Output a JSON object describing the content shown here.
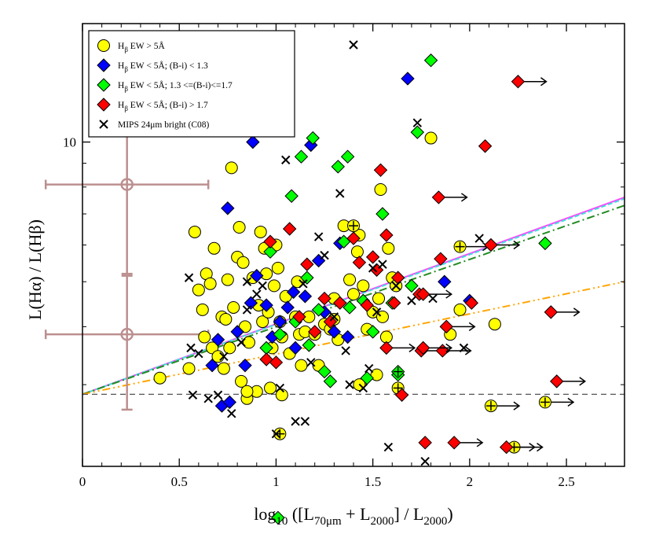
{
  "chart_data": {
    "type": "scatter",
    "xlabel": "log10 ([L70μm + L2000] / L2000)",
    "ylabel": "L(Hα) / L(Hβ)",
    "xlim": [
      0,
      2.8
    ],
    "ylim_log": [
      2,
      18
    ],
    "x_ticks": [
      "0",
      "0.5",
      "1",
      "1.5",
      "2",
      "2.5"
    ],
    "y_tick_label": "10",
    "legend": [
      {
        "key": "yellow",
        "text": "Hβ EW > 5Å",
        "marker": "circle",
        "color": "#ffff00"
      },
      {
        "key": "blue",
        "text": "Hβ EW < 5Å; (B-i) < 1.3",
        "marker": "diamond",
        "color": "#0000ff"
      },
      {
        "key": "green",
        "text": "Hβ EW < 5Å; 1.3 <=(B-i)<=1.7",
        "marker": "diamond",
        "color": "#00ff00"
      },
      {
        "key": "red",
        "text": "Hβ EW < 5Å; (B-i) > 1.7",
        "marker": "diamond",
        "color": "#ff0000"
      },
      {
        "key": "cross",
        "text": "MIPS 24μm bright  (C08)",
        "marker": "x",
        "color": "#000000"
      }
    ],
    "reference_line_y": 2.86,
    "fit_lines": [
      {
        "name": "magenta-fit",
        "color": "#ff44ff",
        "dash": "",
        "x": [
          0,
          2.8
        ],
        "y": [
          2.86,
          7.6
        ]
      },
      {
        "name": "cyan-fit",
        "color": "#44dddd",
        "dash": "6,3",
        "x": [
          0,
          2.8
        ],
        "y": [
          2.86,
          7.55
        ]
      },
      {
        "name": "green-fit",
        "color": "#228b22",
        "dash": "10,4,2,4",
        "x": [
          0,
          2.8
        ],
        "y": [
          2.86,
          7.3
        ]
      },
      {
        "name": "orange-fit",
        "color": "#ffa500",
        "dash": "10,4,2,4,2,4",
        "x": [
          0,
          2.8
        ],
        "y": [
          2.86,
          5.0
        ]
      }
    ],
    "error_bars": [
      {
        "x": 0.23,
        "y": 8.1,
        "xerr": [
          0.42,
          0.42
        ],
        "yerr_lo": 5.2,
        "yerr_hi": 10.6
      },
      {
        "x": 0.23,
        "y": 3.85,
        "xerr": [
          0.42,
          0.42
        ],
        "yerr_lo": 2.65,
        "yerr_hi": 5.15
      }
    ],
    "series": [
      {
        "name": "yellow",
        "points": [
          [
            0.4,
            3.1
          ],
          [
            0.55,
            3.25
          ],
          [
            0.58,
            6.4
          ],
          [
            0.6,
            4.8
          ],
          [
            0.62,
            4.35
          ],
          [
            0.63,
            3.8
          ],
          [
            0.64,
            5.2
          ],
          [
            0.66,
            4.95
          ],
          [
            0.67,
            3.6
          ],
          [
            0.68,
            5.9
          ],
          [
            0.7,
            3.45
          ],
          [
            0.72,
            4.2
          ],
          [
            0.73,
            3.25
          ],
          [
            0.74,
            4.15
          ],
          [
            0.75,
            5.05
          ],
          [
            0.76,
            3.6
          ],
          [
            0.77,
            8.8
          ],
          [
            0.78,
            4.4
          ],
          [
            0.8,
            5.65
          ],
          [
            0.81,
            6.55
          ],
          [
            0.82,
            3.05
          ],
          [
            0.83,
            5.5
          ],
          [
            0.84,
            4.0
          ],
          [
            0.85,
            2.8
          ],
          [
            0.86,
            3.7
          ],
          [
            0.88,
            5.1
          ],
          [
            0.9,
            2.9
          ],
          [
            0.91,
            4.45
          ],
          [
            0.92,
            6.4
          ],
          [
            0.93,
            4.1
          ],
          [
            0.94,
            5.9
          ],
          [
            0.95,
            5.2
          ],
          [
            0.96,
            4.3
          ],
          [
            0.97,
            2.95
          ],
          [
            0.98,
            3.6
          ],
          [
            0.99,
            4.9
          ],
          [
            1.0,
            6.0
          ],
          [
            1.01,
            5.35
          ],
          [
            1.02,
            4.1
          ],
          [
            1.03,
            3.8
          ],
          [
            1.05,
            4.65
          ],
          [
            1.07,
            3.5
          ],
          [
            1.1,
            4.2
          ],
          [
            1.11,
            5.0
          ],
          [
            1.12,
            3.85
          ],
          [
            1.13,
            3.3
          ],
          [
            1.15,
            3.9
          ],
          [
            1.17,
            4.2
          ],
          [
            1.2,
            3.85
          ],
          [
            1.22,
            3.3
          ],
          [
            1.25,
            4.05
          ],
          [
            1.28,
            3.95
          ],
          [
            1.3,
            4.15
          ],
          [
            1.32,
            3.75
          ],
          [
            1.35,
            6.6
          ],
          [
            1.38,
            5.05
          ],
          [
            1.4,
            4.7
          ],
          [
            1.42,
            5.8
          ],
          [
            1.43,
            6.3
          ],
          [
            1.45,
            4.9
          ],
          [
            1.47,
            3.95
          ],
          [
            1.5,
            4.3
          ],
          [
            1.53,
            4.6
          ],
          [
            1.54,
            7.9
          ],
          [
            1.55,
            4.2
          ],
          [
            1.57,
            3.8
          ],
          [
            1.58,
            5.9
          ],
          [
            1.6,
            5.1
          ],
          [
            1.62,
            4.9
          ],
          [
            1.8,
            10.2
          ],
          [
            1.9,
            3.85
          ],
          [
            1.95,
            4.35
          ],
          [
            2.13,
            4.05
          ],
          [
            1.43,
            3.0
          ],
          [
            1.52,
            3.15
          ],
          [
            1.03,
            2.85
          ],
          [
            0.85,
            2.9
          ],
          [
            1.3,
            4.6
          ]
        ]
      },
      {
        "name": "yellow-plus",
        "points": [
          [
            1.4,
            6.6
          ],
          [
            1.63,
            2.95
          ],
          [
            1.95,
            5.95
          ],
          [
            2.11,
            2.7
          ],
          [
            2.23,
            2.2
          ],
          [
            2.39,
            2.75
          ],
          [
            1.02,
            2.35
          ]
        ]
      },
      {
        "name": "blue",
        "points": [
          [
            0.67,
            3.3
          ],
          [
            0.7,
            3.75
          ],
          [
            0.72,
            2.7
          ],
          [
            0.75,
            7.2
          ],
          [
            0.76,
            2.75
          ],
          [
            0.8,
            3.9
          ],
          [
            0.84,
            3.3
          ],
          [
            0.87,
            4.5
          ],
          [
            0.88,
            10.0
          ],
          [
            0.9,
            5.15
          ],
          [
            0.95,
            4.45
          ],
          [
            0.98,
            3.8
          ],
          [
            1.02,
            4.1
          ],
          [
            1.06,
            4.4
          ],
          [
            1.09,
            4.75
          ],
          [
            1.1,
            3.6
          ],
          [
            1.15,
            4.65
          ],
          [
            1.18,
            9.85
          ],
          [
            1.22,
            5.55
          ],
          [
            1.25,
            4.3
          ],
          [
            1.3,
            3.9
          ],
          [
            1.33,
            6.05
          ],
          [
            1.37,
            3.8
          ],
          [
            1.68,
            13.7
          ],
          [
            1.87,
            5.0
          ],
          [
            2.0,
            4.55
          ]
        ]
      },
      {
        "name": "green",
        "points": [
          [
            0.95,
            3.6
          ],
          [
            0.97,
            5.8
          ],
          [
            1.02,
            3.85
          ],
          [
            1.08,
            7.65
          ],
          [
            1.1,
            4.1
          ],
          [
            1.13,
            9.3
          ],
          [
            1.16,
            5.1
          ],
          [
            1.17,
            3.65
          ],
          [
            1.19,
            10.2
          ],
          [
            1.22,
            4.35
          ],
          [
            1.25,
            3.2
          ],
          [
            1.28,
            3.05
          ],
          [
            1.32,
            8.85
          ],
          [
            1.35,
            6.1
          ],
          [
            1.37,
            9.3
          ],
          [
            1.38,
            4.4
          ],
          [
            1.45,
            4.55
          ],
          [
            1.47,
            3.1
          ],
          [
            1.5,
            3.9
          ],
          [
            1.55,
            7.0
          ],
          [
            1.6,
            4.5
          ],
          [
            1.63,
            3.15
          ],
          [
            1.73,
            10.5
          ],
          [
            1.8,
            15.0
          ],
          [
            1.7,
            4.9
          ],
          [
            2.39,
            6.05
          ],
          [
            1.01,
            1.55
          ]
        ]
      },
      {
        "name": "green-plus",
        "points": [
          [
            1.63,
            3.2
          ]
        ]
      },
      {
        "name": "red",
        "points": [
          [
            0.95,
            3.4
          ],
          [
            0.97,
            6.1
          ],
          [
            1.0,
            3.35
          ],
          [
            1.07,
            6.5
          ],
          [
            1.12,
            4.2
          ],
          [
            1.16,
            5.45
          ],
          [
            1.2,
            3.9
          ],
          [
            1.25,
            4.6
          ],
          [
            1.28,
            4.1
          ],
          [
            1.33,
            4.5
          ],
          [
            1.4,
            6.2
          ],
          [
            1.43,
            5.5
          ],
          [
            1.47,
            4.45
          ],
          [
            1.5,
            5.65
          ],
          [
            1.52,
            5.3
          ],
          [
            1.54,
            8.7
          ],
          [
            1.57,
            6.3
          ],
          [
            1.61,
            4.5
          ],
          [
            1.63,
            5.1
          ],
          [
            1.65,
            2.85
          ],
          [
            1.74,
            4.7
          ],
          [
            1.77,
            2.25
          ],
          [
            1.85,
            5.6
          ],
          [
            2.08,
            9.8
          ],
          [
            2.01,
            4.5
          ]
        ]
      },
      {
        "name": "red-arrow",
        "points": [
          [
            1.76,
            4.7
          ],
          [
            1.84,
            7.6
          ],
          [
            1.88,
            4.0
          ],
          [
            2.11,
            6.0
          ],
          [
            2.25,
            13.5
          ],
          [
            2.42,
            4.3
          ],
          [
            2.45,
            3.05
          ],
          [
            1.92,
            2.25
          ],
          [
            2.19,
            2.2
          ],
          [
            1.75,
            3.55
          ],
          [
            1.57,
            3.6
          ],
          [
            1.86,
            3.55
          ],
          [
            1.76,
            3.6
          ]
        ]
      },
      {
        "name": "cross",
        "points": [
          [
            0.55,
            5.1
          ],
          [
            0.56,
            3.6
          ],
          [
            0.57,
            2.85
          ],
          [
            0.6,
            3.5
          ],
          [
            0.65,
            2.8
          ],
          [
            0.7,
            2.85
          ],
          [
            0.73,
            3.45
          ],
          [
            0.77,
            2.6
          ],
          [
            0.82,
            3.7
          ],
          [
            0.85,
            5.0
          ],
          [
            0.9,
            4.7
          ],
          [
            0.93,
            4.9
          ],
          [
            1.0,
            2.35
          ],
          [
            1.02,
            2.95
          ],
          [
            1.05,
            9.15
          ],
          [
            1.1,
            2.5
          ],
          [
            1.15,
            2.5
          ],
          [
            1.18,
            3.35
          ],
          [
            1.22,
            6.25
          ],
          [
            1.25,
            5.7
          ],
          [
            1.3,
            4.2
          ],
          [
            1.33,
            7.75
          ],
          [
            1.36,
            3.55
          ],
          [
            1.38,
            3.0
          ],
          [
            1.4,
            16.2
          ],
          [
            1.45,
            2.95
          ],
          [
            1.48,
            3.25
          ],
          [
            1.5,
            5.35
          ],
          [
            1.52,
            4.3
          ],
          [
            1.55,
            5.45
          ],
          [
            1.58,
            2.2
          ],
          [
            1.62,
            4.9
          ],
          [
            1.7,
            4.55
          ],
          [
            1.73,
            11.0
          ],
          [
            1.77,
            2.05
          ],
          [
            1.81,
            4.6
          ],
          [
            1.97,
            3.6
          ],
          [
            2.05,
            6.2
          ],
          [
            1.14,
            4.95
          ],
          [
            0.85,
            4.35
          ]
        ]
      }
    ]
  }
}
